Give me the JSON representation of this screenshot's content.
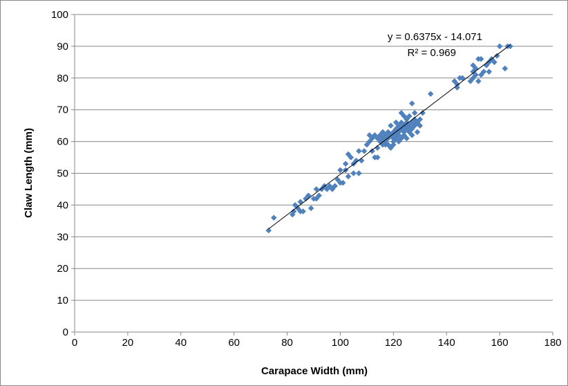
{
  "chart_data": {
    "type": "scatter",
    "xlabel": "Carapace Width (mm)",
    "ylabel": "Claw Length (mm)",
    "xlim": [
      0,
      180
    ],
    "ylim": [
      0,
      100
    ],
    "xticks": [
      "0",
      "20",
      "40",
      "60",
      "80",
      "100",
      "120",
      "140",
      "160",
      "180"
    ],
    "yticks": [
      "0",
      "10",
      "20",
      "30",
      "40",
      "50",
      "60",
      "70",
      "80",
      "90",
      "100"
    ],
    "grid": "horizontal",
    "legend": "none",
    "marker_color": "#4f81bd",
    "trendline": {
      "equation": "y = 0.6375x - 14.071",
      "r_squared": "R² = 0.969",
      "slope": 0.6375,
      "intercept": -14.071,
      "x_range": [
        73,
        164
      ],
      "color": "#000000"
    },
    "points": [
      [
        73,
        32
      ],
      [
        75,
        36
      ],
      [
        82,
        37
      ],
      [
        82.5,
        38
      ],
      [
        83,
        40
      ],
      [
        84,
        39
      ],
      [
        85,
        38
      ],
      [
        85,
        41
      ],
      [
        86,
        38
      ],
      [
        87,
        42
      ],
      [
        88,
        43
      ],
      [
        89,
        39
      ],
      [
        90,
        42
      ],
      [
        91,
        45
      ],
      [
        91,
        42
      ],
      [
        92,
        43
      ],
      [
        93,
        45
      ],
      [
        94,
        46
      ],
      [
        95,
        45
      ],
      [
        96,
        46
      ],
      [
        97,
        45
      ],
      [
        98,
        46
      ],
      [
        99,
        48
      ],
      [
        100,
        51
      ],
      [
        100,
        47
      ],
      [
        101,
        47
      ],
      [
        102,
        53
      ],
      [
        102,
        51
      ],
      [
        103,
        49
      ],
      [
        103,
        56
      ],
      [
        104,
        55
      ],
      [
        105,
        53
      ],
      [
        105,
        50
      ],
      [
        106,
        54
      ],
      [
        107,
        57
      ],
      [
        107,
        50
      ],
      [
        108,
        54
      ],
      [
        109,
        57
      ],
      [
        110,
        59
      ],
      [
        111,
        62
      ],
      [
        111,
        60
      ],
      [
        112,
        61
      ],
      [
        112,
        57
      ],
      [
        113,
        62
      ],
      [
        113,
        55
      ],
      [
        114,
        61
      ],
      [
        114,
        55
      ],
      [
        114,
        58
      ],
      [
        115,
        62
      ],
      [
        115,
        60
      ],
      [
        116,
        61
      ],
      [
        116,
        63
      ],
      [
        116,
        59
      ],
      [
        117,
        60
      ],
      [
        117,
        62
      ],
      [
        117,
        59
      ],
      [
        118,
        63
      ],
      [
        118,
        61
      ],
      [
        118,
        59
      ],
      [
        119,
        62
      ],
      [
        119,
        65
      ],
      [
        119,
        58
      ],
      [
        120,
        60
      ],
      [
        120,
        63
      ],
      [
        120,
        61
      ],
      [
        120,
        59
      ],
      [
        121,
        62
      ],
      [
        121,
        64
      ],
      [
        121,
        66
      ],
      [
        121,
        61
      ],
      [
        122,
        63
      ],
      [
        122,
        65
      ],
      [
        122,
        60
      ],
      [
        122,
        62
      ],
      [
        123,
        64
      ],
      [
        123,
        69
      ],
      [
        123,
        61
      ],
      [
        123,
        66
      ],
      [
        124,
        65
      ],
      [
        124,
        63
      ],
      [
        124,
        68
      ],
      [
        124,
        62
      ],
      [
        125,
        65
      ],
      [
        125,
        67
      ],
      [
        125,
        61
      ],
      [
        125,
        64
      ],
      [
        125,
        66
      ],
      [
        126,
        68
      ],
      [
        126,
        63
      ],
      [
        126,
        65
      ],
      [
        126,
        64
      ],
      [
        127,
        72
      ],
      [
        127,
        66
      ],
      [
        127,
        64
      ],
      [
        127,
        62
      ],
      [
        128,
        69
      ],
      [
        128,
        65
      ],
      [
        128,
        67
      ],
      [
        129,
        63
      ],
      [
        129,
        66
      ],
      [
        130,
        65
      ],
      [
        130,
        67
      ],
      [
        131,
        69
      ],
      [
        134,
        75
      ],
      [
        143,
        79
      ],
      [
        144,
        77
      ],
      [
        144,
        78
      ],
      [
        145,
        80
      ],
      [
        146,
        80
      ],
      [
        149,
        79
      ],
      [
        150,
        84
      ],
      [
        150,
        82
      ],
      [
        150,
        80
      ],
      [
        151,
        81
      ],
      [
        151,
        83
      ],
      [
        152,
        79
      ],
      [
        152,
        86
      ],
      [
        153,
        81
      ],
      [
        153,
        86
      ],
      [
        154,
        82
      ],
      [
        155,
        84
      ],
      [
        156,
        82
      ],
      [
        156,
        85
      ],
      [
        157,
        86
      ],
      [
        158,
        85
      ],
      [
        159,
        87
      ],
      [
        160,
        90
      ],
      [
        162,
        83
      ],
      [
        163,
        90
      ],
      [
        164,
        90
      ]
    ]
  }
}
